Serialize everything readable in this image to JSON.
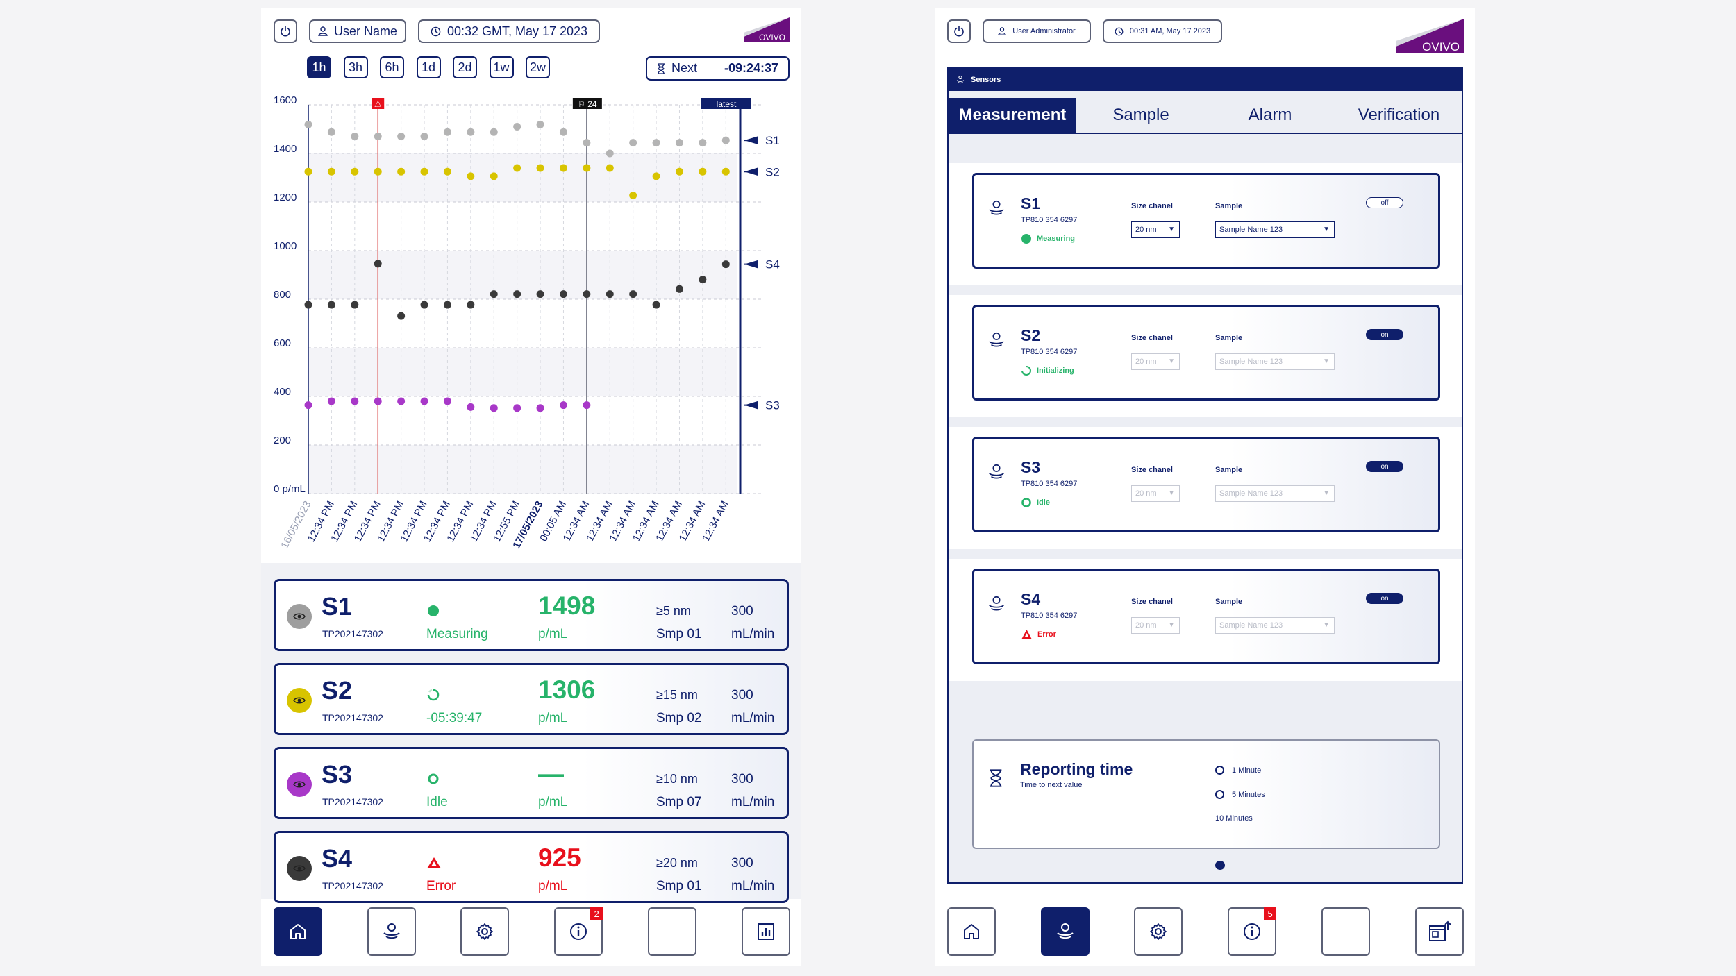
{
  "left": {
    "header": {
      "user": "User Name",
      "time": "00:32 GMT, May 17 2023",
      "logo": "OVIVO"
    },
    "ranges": [
      "1h",
      "3h",
      "6h",
      "1d",
      "2d",
      "1w",
      "2w"
    ],
    "active_range": "1h",
    "next": {
      "label": "Next",
      "value": "-09:24:37"
    },
    "chart_data": {
      "type": "scatter",
      "title": "",
      "ylabel": "p/mL",
      "ylim": [
        0,
        1600
      ],
      "yticks": [
        "1600",
        "1400",
        "1200",
        "1000",
        "800",
        "600",
        "400",
        "200",
        "0 p/mL"
      ],
      "x": [
        "16/05/2023",
        "12:34 PM",
        "12:34 PM",
        "12:34 PM",
        "12:34 PM",
        "12:34 PM",
        "12:34 PM",
        "12:34 PM",
        "12:34 PM",
        "12:55 PM",
        "17/05/2023",
        "00:05 AM",
        "12:34 AM",
        "12:34 AM",
        "12:34 AM",
        "12:34 AM",
        "12:34 AM",
        "12:34 AM",
        "12:34 AM"
      ],
      "markers": {
        "alert": "⚠",
        "flag": "⚐ 24",
        "latest": "latest"
      },
      "series": [
        {
          "name": "S1",
          "color": "#b4b4b4",
          "values": [
            1519,
            1488,
            1470,
            1470,
            1470,
            1470,
            1488,
            1488,
            1488,
            1510,
            1519,
            1488,
            1444,
            1400,
            1444,
            1444,
            1444,
            1444,
            1454
          ]
        },
        {
          "name": "S2",
          "color": "#d8c400",
          "values": [
            1325,
            1325,
            1325,
            1325,
            1325,
            1325,
            1325,
            1306,
            1306,
            1340,
            1340,
            1340,
            1340,
            1340,
            1227,
            1306,
            1325,
            1325,
            1325
          ]
        },
        {
          "name": "S4",
          "color": "#3a3a3a",
          "values": [
            777,
            777,
            777,
            946,
            731,
            777,
            777,
            777,
            821,
            821,
            821,
            821,
            821,
            821,
            821,
            777,
            842,
            881,
            944
          ]
        },
        {
          "name": "S3",
          "color": "#a838c8",
          "values": [
            364,
            380,
            380,
            380,
            380,
            380,
            380,
            356,
            352,
            352,
            352,
            364,
            364
          ]
        }
      ]
    },
    "cards": [
      {
        "name": "S1",
        "id": "TP202147302",
        "status": "Measuring",
        "value": "1498",
        "unit": "p/mL",
        "size": "≥5 nm",
        "sample": "Smp 01",
        "flow": "300",
        "flow_unit": "mL/min"
      },
      {
        "name": "S2",
        "id": "TP202147302",
        "status": "-05:39:47",
        "value": "1306",
        "unit": "p/mL",
        "size": "≥15 nm",
        "sample": "Smp 02",
        "flow": "300",
        "flow_unit": "mL/min"
      },
      {
        "name": "S3",
        "id": "TP202147302",
        "status": "Idle",
        "value": "—",
        "unit": "p/mL",
        "size": "≥10 nm",
        "sample": "Smp 07",
        "flow": "300",
        "flow_unit": "mL/min"
      },
      {
        "name": "S4",
        "id": "TP202147302",
        "status": "Error",
        "value": "925",
        "unit": "p/mL",
        "size": "≥20 nm",
        "sample": "Smp 01",
        "flow": "300",
        "flow_unit": "mL/min"
      }
    ],
    "nav_badge": "2"
  },
  "right": {
    "header": {
      "user": "User Administrator",
      "time": "00:31 AM, May 17 2023",
      "logo": "OVIVO"
    },
    "section": "Sensors",
    "tabs": [
      "Measurement",
      "Sample",
      "Alarm",
      "Verification"
    ],
    "labels": {
      "size": "Size chanel",
      "sample": "Sample"
    },
    "sensors": [
      {
        "name": "S1",
        "id": "TP810 354 6297",
        "status": "Measuring",
        "size": "20 nm",
        "sample": "Sample Name 123",
        "toggle": "off"
      },
      {
        "name": "S2",
        "id": "TP810 354 6297",
        "status": "Initializing",
        "size": "20 nm",
        "sample": "Sample Name 123",
        "toggle": "on"
      },
      {
        "name": "S3",
        "id": "TP810 354 6297",
        "status": "Idle",
        "size": "20 nm",
        "sample": "Sample Name 123",
        "toggle": "on"
      },
      {
        "name": "S4",
        "id": "TP810 354 6297",
        "status": "Error",
        "size": "20 nm",
        "sample": "Sample Name 123",
        "toggle": "on"
      }
    ],
    "reporting": {
      "title": "Reporting time",
      "subtitle": "Time to next value",
      "options": [
        "1 Minute",
        "5 Minutes",
        "10 Minutes"
      ],
      "selected": "10 Minutes"
    },
    "nav_badge": "5"
  }
}
